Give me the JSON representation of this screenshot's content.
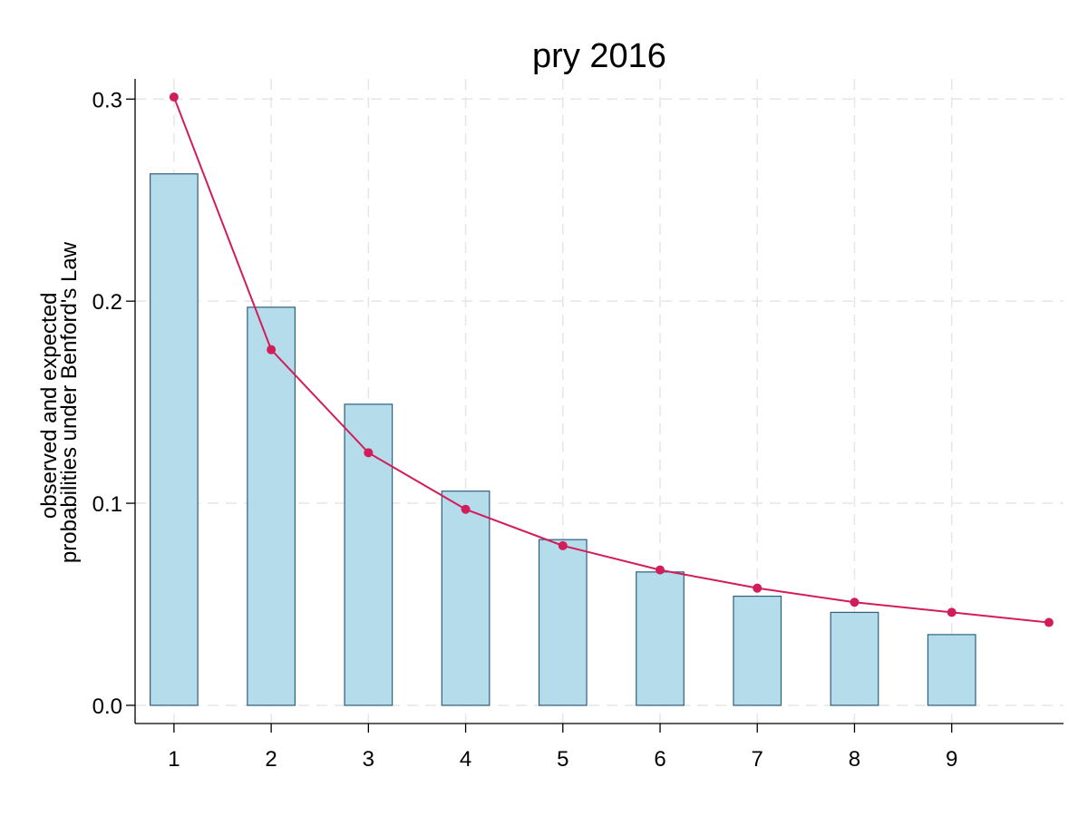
{
  "chart_data": {
    "type": "bar",
    "title": "pry 2016",
    "ylabel_lines": [
      "observed and expected",
      "probabilities under Benford's Law"
    ],
    "xlabel": "",
    "categories": [
      "1",
      "2",
      "3",
      "4",
      "5",
      "6",
      "7",
      "8",
      "9"
    ],
    "xlim": [
      0.6,
      10.15
    ],
    "ylim": [
      -0.009,
      0.31
    ],
    "yticks": [
      0.0,
      0.1,
      0.2,
      0.3
    ],
    "ytick_labels": [
      "0.0",
      "0.1",
      "0.2",
      "0.3"
    ],
    "grid": true,
    "series": [
      {
        "kind": "bar",
        "values": [
          0.263,
          0.197,
          0.149,
          0.106,
          0.082,
          0.066,
          0.054,
          0.046,
          0.035
        ],
        "color": "#b4dcea",
        "edge_color": "#2f5f7e"
      },
      {
        "kind": "line",
        "x": [
          1,
          2,
          3,
          4,
          5,
          6,
          7,
          8,
          9,
          10
        ],
        "values": [
          0.301,
          0.176,
          0.125,
          0.097,
          0.079,
          0.067,
          0.058,
          0.051,
          0.046,
          0.041
        ],
        "color": "#d21d5b"
      }
    ]
  }
}
